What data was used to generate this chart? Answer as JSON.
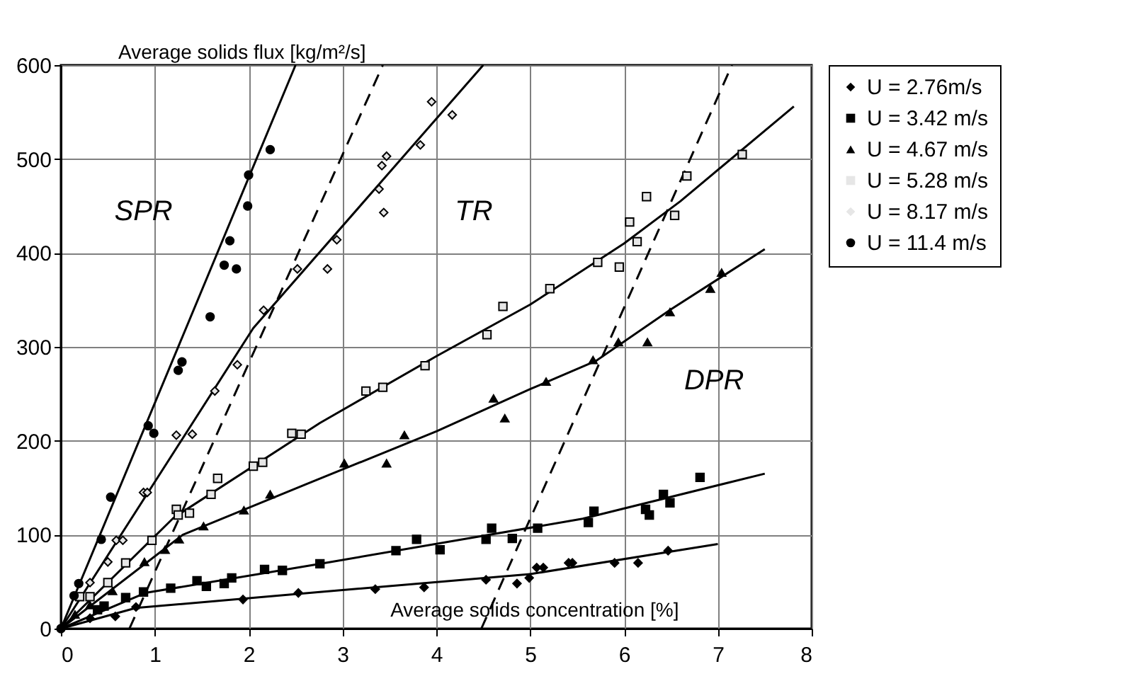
{
  "chart_data": {
    "type": "scatter",
    "xlabel": "Average solids concentration  [%]",
    "ylabel": "Average solids flux  [kg/m²/s]",
    "xlim": [
      0,
      8
    ],
    "ylim": [
      0,
      600
    ],
    "xticks": [
      0,
      1,
      2,
      3,
      4,
      5,
      6,
      7,
      8
    ],
    "yticks": [
      0,
      100,
      200,
      300,
      400,
      500,
      600
    ],
    "grid": true,
    "legend": "right",
    "annotations": [
      "SPR",
      "TR",
      "DPR"
    ],
    "series": [
      {
        "name": "U = 2.76m/s",
        "color": "#000000",
        "marker": "diamond",
        "x": [
          0.31,
          0.58,
          0.8,
          1.94,
          2.53,
          3.35,
          3.87,
          4.53,
          4.86,
          4.99,
          5.07,
          5.14,
          5.41,
          5.45,
          5.9,
          6.15,
          6.47
        ],
        "values": [
          11,
          13,
          23,
          31,
          38,
          42,
          44,
          52,
          48,
          54,
          65,
          65,
          70,
          70,
          70,
          70,
          83
        ]
      },
      {
        "name": "U = 3.42 m/s",
        "color": "#000000",
        "marker": "square",
        "x": [
          0.39,
          0.46,
          0.69,
          0.88,
          1.17,
          1.45,
          1.55,
          1.74,
          1.82,
          2.17,
          2.36,
          2.76,
          3.57,
          3.79,
          4.04,
          4.53,
          4.59,
          4.81,
          5.08,
          5.62,
          5.68,
          6.23,
          6.27,
          6.42,
          6.49,
          6.81
        ],
        "values": [
          20,
          24,
          33,
          39,
          43,
          51,
          45,
          48,
          54,
          63,
          62,
          69,
          83,
          95,
          84,
          95,
          107,
          96,
          107,
          113,
          125,
          127,
          121,
          143,
          134,
          161
        ]
      },
      {
        "name": "U = 4.67 m/s",
        "color": "#000000",
        "marker": "triangle",
        "x": [
          0.15,
          0.31,
          0.55,
          0.89,
          1.11,
          1.26,
          1.52,
          1.95,
          2.23,
          3.02,
          3.47,
          3.66,
          4.61,
          4.73,
          5.17,
          5.67,
          5.94,
          6.25,
          6.49,
          6.92,
          7.04
        ],
        "values": [
          15,
          25,
          40,
          71,
          84,
          95,
          109,
          126,
          143,
          176,
          176,
          206,
          245,
          224,
          263,
          286,
          305,
          305,
          337,
          362,
          379
        ]
      },
      {
        "name": "U = 5.28 m/s",
        "color": "#e6e6e6",
        "marker": "square",
        "x": [
          0.2,
          0.31,
          0.5,
          0.69,
          0.97,
          1.23,
          1.25,
          1.37,
          1.6,
          1.67,
          2.05,
          2.15,
          2.46,
          2.56,
          3.25,
          3.43,
          3.88,
          4.54,
          4.71,
          5.21,
          5.72,
          5.95,
          6.06,
          6.14,
          6.24,
          6.54,
          6.67,
          7.26
        ],
        "values": [
          34,
          34,
          49,
          70,
          94,
          127,
          121,
          123,
          143,
          160,
          173,
          177,
          208,
          207,
          253,
          257,
          280,
          313,
          343,
          362,
          390,
          385,
          433,
          412,
          460,
          440,
          482,
          505
        ]
      },
      {
        "name": "U = 8.17 m/s",
        "color": "#e6e6e6",
        "marker": "diamond",
        "x": [
          0.31,
          0.5,
          0.59,
          0.66,
          0.88,
          0.92,
          1.23,
          1.4,
          1.64,
          1.88,
          2.16,
          2.52,
          2.84,
          2.94,
          3.39,
          3.42,
          3.44,
          3.47,
          3.83,
          3.95,
          4.17
        ],
        "values": [
          49,
          71,
          94,
          94,
          145,
          145,
          206,
          207,
          253,
          281,
          339,
          383,
          383,
          414,
          468,
          493,
          443,
          503,
          515,
          561,
          547
        ]
      },
      {
        "name": "U = 11.4 m/s",
        "color": "#000000",
        "marker": "circle",
        "x": [
          0,
          0.14,
          0.19,
          0.43,
          0.53,
          0.93,
          0.99,
          1.25,
          1.29,
          1.59,
          1.74,
          1.8,
          1.87,
          1.99,
          2.0,
          2.23
        ],
        "values": [
          0,
          35,
          48,
          95,
          140,
          216,
          208,
          275,
          284,
          332,
          387,
          413,
          383,
          450,
          483,
          510
        ]
      },
      {
        "type": "line",
        "color": "#000000",
        "marker": "none",
        "line_style": "solid",
        "x": [
          0,
          0.8,
          2.76,
          5.0,
          7.0
        ],
        "values": [
          0,
          22,
          39,
          58,
          90
        ]
      },
      {
        "type": "line",
        "color": "#000000",
        "marker": "none",
        "line_style": "solid",
        "x": [
          0,
          0.9,
          2.76,
          5.56,
          7.5
        ],
        "values": [
          0,
          38,
          69,
          117,
          165
        ]
      },
      {
        "type": "line",
        "color": "#000000",
        "marker": "none",
        "line_style": "solid",
        "x": [
          0,
          1.3,
          2.62,
          4.0,
          5.0,
          5.7,
          6.5,
          7.5
        ],
        "values": [
          0,
          100,
          154,
          210,
          255,
          285,
          340,
          404
        ]
      },
      {
        "type": "line",
        "color": "#000000",
        "marker": "none",
        "line_style": "solid",
        "x": [
          0,
          1.2,
          2.76,
          4.0,
          5.0,
          6.0,
          6.6,
          7.81
        ],
        "values": [
          0,
          118,
          219,
          290,
          345,
          410,
          455,
          556
        ]
      },
      {
        "type": "line",
        "color": "#000000",
        "marker": "none",
        "line_style": "solid",
        "x": [
          0,
          2.05,
          4.5
        ],
        "values": [
          0,
          320,
          600
        ]
      },
      {
        "type": "line",
        "color": "#000000",
        "marker": "none",
        "line_style": "solid",
        "x": [
          0,
          2.5
        ],
        "values": [
          0,
          600
        ]
      },
      {
        "type": "line",
        "color": "#000000",
        "marker": "none",
        "line_style": "dashed",
        "x": [
          0.73,
          3.43
        ],
        "values": [
          0,
          600
        ]
      },
      {
        "type": "line",
        "color": "#000000",
        "marker": "none",
        "line_style": "dashed",
        "x": [
          4.48,
          7.15
        ],
        "values": [
          0,
          600
        ]
      }
    ]
  }
}
